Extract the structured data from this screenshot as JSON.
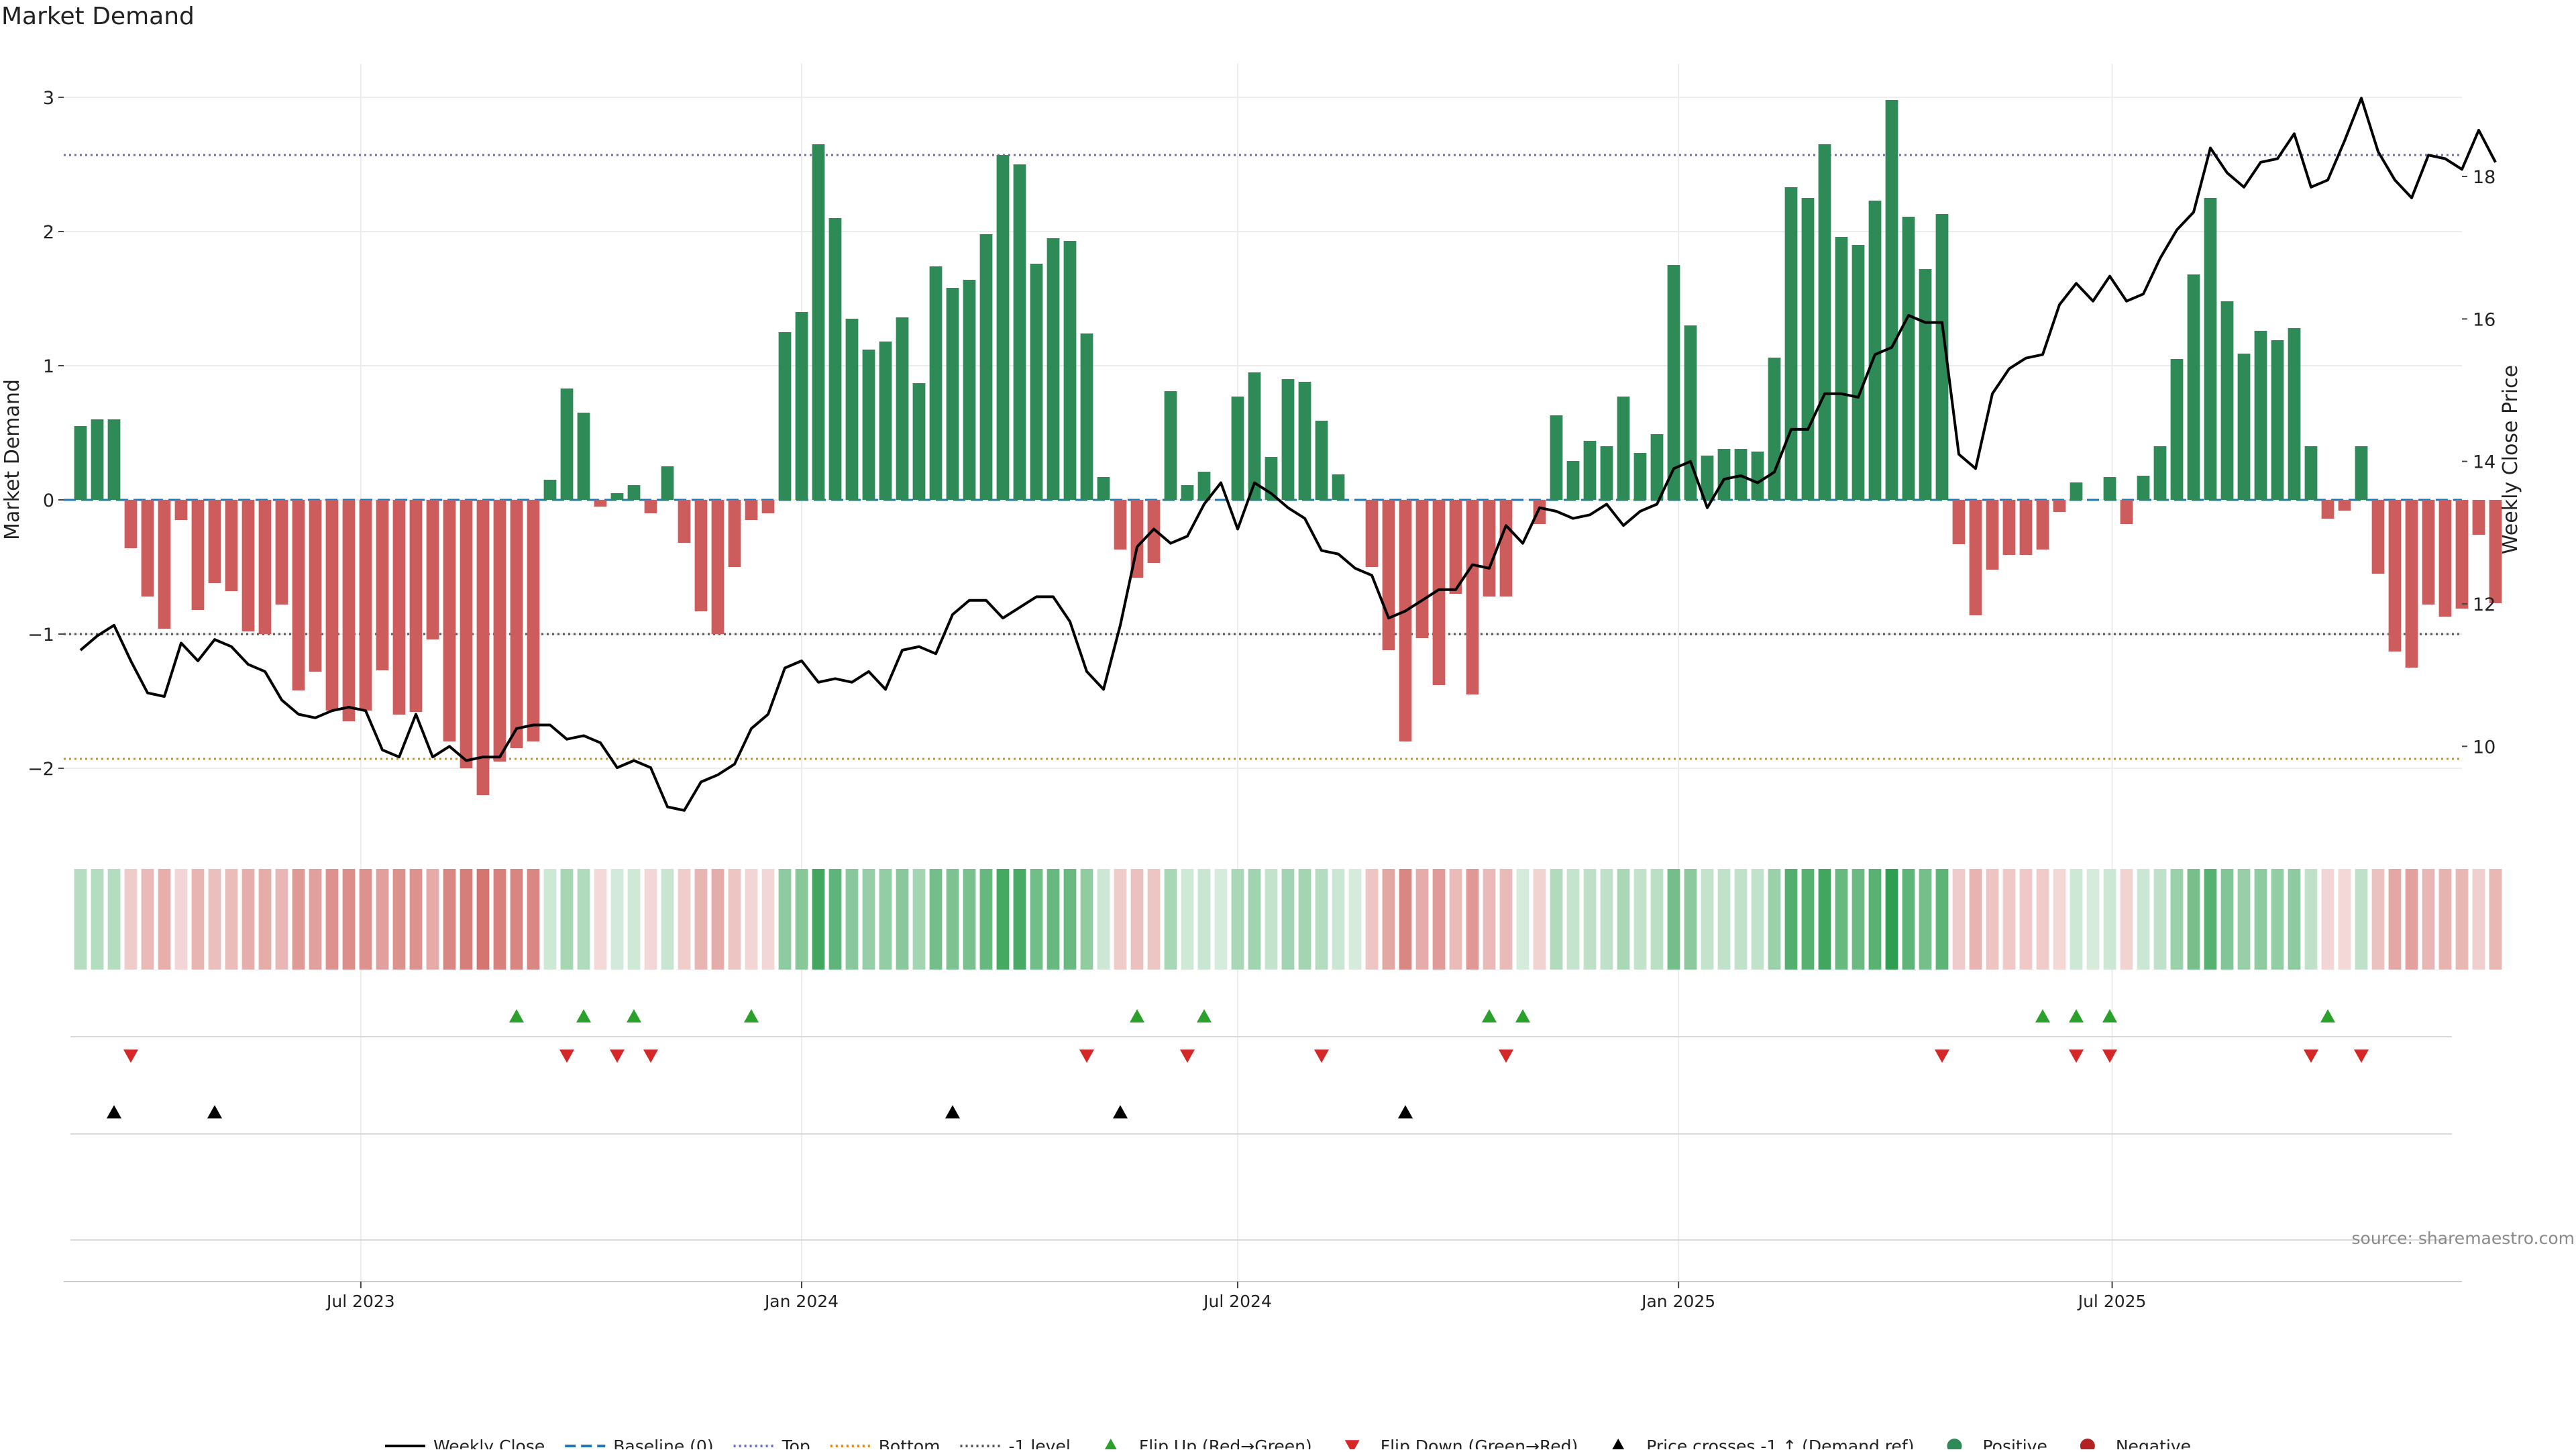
{
  "chart_data": {
    "type": "bar",
    "title": "Market Demand",
    "ylabel": "Market Demand",
    "y2label": "Weekly Close Price",
    "ylim": [
      -2.5,
      3.1
    ],
    "y2lim": [
      8.75,
      19.3
    ],
    "yticks": [
      -2,
      -1,
      0,
      1,
      2,
      3
    ],
    "yticklabels": [
      "−2",
      "−1",
      "0",
      "1",
      "2",
      "3"
    ],
    "y2ticks": [
      10,
      12,
      14,
      16,
      18
    ],
    "xlim": [
      "2023-02-27",
      "2025-11-24"
    ],
    "xticks": [
      "2023-07-01",
      "2024-01-01",
      "2024-07-01",
      "2025-01-01",
      "2025-07-01"
    ],
    "xticklabels": [
      "Jul 2023",
      "Jan 2024",
      "Jul 2024",
      "Jan 2025",
      "Jul 2025"
    ],
    "first_week": "2023-03-06",
    "week_step_days": 7,
    "values": [
      0.55,
      0.6,
      0.6,
      -0.36,
      -0.72,
      -0.96,
      -0.15,
      -0.82,
      -0.62,
      -0.68,
      -0.98,
      -1.0,
      -0.78,
      -1.42,
      -1.28,
      -1.57,
      -1.65,
      -1.57,
      -1.27,
      -1.6,
      -1.58,
      -1.04,
      -1.8,
      -2.0,
      -2.2,
      -1.95,
      -1.85,
      -1.8,
      0.15,
      0.83,
      0.65,
      -0.05,
      0.05,
      0.11,
      -0.1,
      0.25,
      -0.32,
      -0.83,
      -1.0,
      -0.5,
      -0.15,
      -0.1,
      1.25,
      1.4,
      2.65,
      2.1,
      1.35,
      1.12,
      1.18,
      1.36,
      0.87,
      1.74,
      1.58,
      1.64,
      1.98,
      2.57,
      2.5,
      1.76,
      1.95,
      1.93,
      1.24,
      0.17,
      -0.37,
      -0.58,
      -0.47,
      0.81,
      0.11,
      0.21,
      0.0,
      0.77,
      0.95,
      0.32,
      0.9,
      0.88,
      0.59,
      0.19,
      0.0,
      -0.5,
      -1.12,
      -1.8,
      -1.03,
      -1.38,
      -0.7,
      -1.45,
      -0.72,
      -0.72,
      0.0,
      -0.18,
      0.63,
      0.29,
      0.44,
      0.4,
      0.77,
      0.35,
      0.49,
      1.75,
      1.3,
      0.33,
      0.38,
      0.38,
      0.36,
      1.06,
      2.33,
      2.25,
      2.65,
      1.96,
      1.9,
      2.23,
      2.98,
      2.11,
      1.72,
      2.13,
      -0.33,
      -0.86,
      -0.52,
      -0.41,
      -0.41,
      -0.37,
      -0.09,
      0.13,
      0.0,
      0.17,
      -0.18,
      0.18,
      0.4,
      1.05,
      1.68,
      2.25,
      1.48,
      1.09,
      1.26,
      1.19,
      1.28,
      0.4,
      -0.14,
      -0.08,
      0.4,
      -0.55,
      -1.13,
      -1.25,
      -0.78,
      -0.87,
      -0.81,
      -0.26,
      -0.77
    ],
    "series": [
      {
        "name": "Weekly Close",
        "axis": "right",
        "values": [
          11.35,
          11.55,
          11.7,
          11.2,
          10.75,
          10.7,
          11.45,
          11.2,
          11.5,
          11.4,
          11.15,
          11.05,
          10.65,
          10.45,
          10.4,
          10.5,
          10.55,
          10.5,
          9.95,
          9.85,
          10.45,
          9.85,
          10.0,
          9.8,
          9.85,
          9.85,
          10.25,
          10.3,
          10.3,
          10.1,
          10.15,
          10.05,
          9.7,
          9.8,
          9.7,
          9.15,
          9.1,
          9.5,
          9.6,
          9.75,
          10.25,
          10.45,
          11.1,
          11.2,
          10.9,
          10.95,
          10.9,
          11.05,
          10.8,
          11.35,
          11.4,
          11.3,
          11.85,
          12.05,
          12.05,
          11.8,
          11.95,
          12.1,
          12.1,
          11.75,
          11.05,
          10.8,
          11.7,
          12.8,
          13.05,
          12.85,
          12.95,
          13.4,
          13.7,
          13.05,
          13.7,
          13.55,
          13.35,
          13.2,
          12.75,
          12.7,
          12.5,
          12.4,
          11.8,
          11.9,
          12.05,
          12.2,
          12.2,
          12.55,
          12.5,
          13.1,
          12.85,
          13.35,
          13.3,
          13.2,
          13.25,
          13.4,
          13.1,
          13.3,
          13.4,
          13.9,
          14.0,
          13.35,
          13.75,
          13.8,
          13.7,
          13.85,
          14.45,
          14.45,
          14.95,
          14.95,
          14.9,
          15.5,
          15.6,
          16.05,
          15.95,
          15.95,
          14.1,
          13.9,
          14.95,
          15.3,
          15.45,
          15.5,
          16.2,
          16.5,
          16.25,
          16.6,
          16.25,
          16.35,
          16.85,
          17.25,
          17.5,
          18.4,
          18.05,
          17.85,
          18.2,
          18.25,
          18.6,
          17.85,
          17.95,
          18.5,
          19.1,
          18.35,
          17.95,
          17.7,
          18.3,
          18.25,
          18.1,
          18.65,
          18.2
        ]
      }
    ],
    "hlines": [
      {
        "name": "Top",
        "y": 2.57,
        "color": "#6b6bc9",
        "style": "dotted"
      },
      {
        "name": "-1 level",
        "y": -1,
        "color": "#555555",
        "style": "dotted"
      },
      {
        "name": "Bottom",
        "y": -1.93,
        "color": "#e08a17",
        "style": "dotted"
      },
      {
        "name": "Baseline (0)",
        "y": 0,
        "color": "#1f77b4",
        "style": "dashed"
      }
    ],
    "flip_up_weeks": [
      26,
      30,
      33,
      40,
      63,
      67,
      84,
      86,
      117,
      119,
      121,
      134
    ],
    "flip_down_weeks": [
      3,
      29,
      32,
      34,
      60,
      66,
      74,
      85,
      111,
      119,
      121,
      133,
      136
    ],
    "price_cross_weeks": [
      2,
      8,
      52,
      62,
      79
    ],
    "colors": {
      "positive": "#2e8b57",
      "negative": "#cd5c5c",
      "price_line": "#000000",
      "flip_up": "#2ca02c",
      "flip_down": "#d62728",
      "price_cross": "#000000",
      "heat_positive_max": "#2e9e4f",
      "heat_negative_max": "#c8504a"
    },
    "legend_position": "bottom-center",
    "grid": true,
    "legend": [
      {
        "label": "Weekly Close",
        "marker": "line",
        "color": "#000000"
      },
      {
        "label": "Baseline (0)",
        "marker": "dashed",
        "color": "#1f77b4"
      },
      {
        "label": "Top",
        "marker": "dotted",
        "color": "#6b6bc9"
      },
      {
        "label": "Bottom",
        "marker": "dotted",
        "color": "#e08a17"
      },
      {
        "label": "-1 level",
        "marker": "dotted",
        "color": "#555555"
      },
      {
        "label": "Flip Up (Red→Green)",
        "marker": "triangle-up",
        "color": "#2ca02c"
      },
      {
        "label": "Flip Down (Green→Red)",
        "marker": "triangle-down",
        "color": "#d62728"
      },
      {
        "label": "Price crosses -1 ↑ (Demand ref)",
        "marker": "triangle-up",
        "color": "#000000"
      },
      {
        "label": "Positive",
        "marker": "circle",
        "color": "#2e8b57"
      },
      {
        "label": "Negative",
        "marker": "circle",
        "color": "#b22222"
      }
    ],
    "source": "source: sharemaestro.com"
  }
}
